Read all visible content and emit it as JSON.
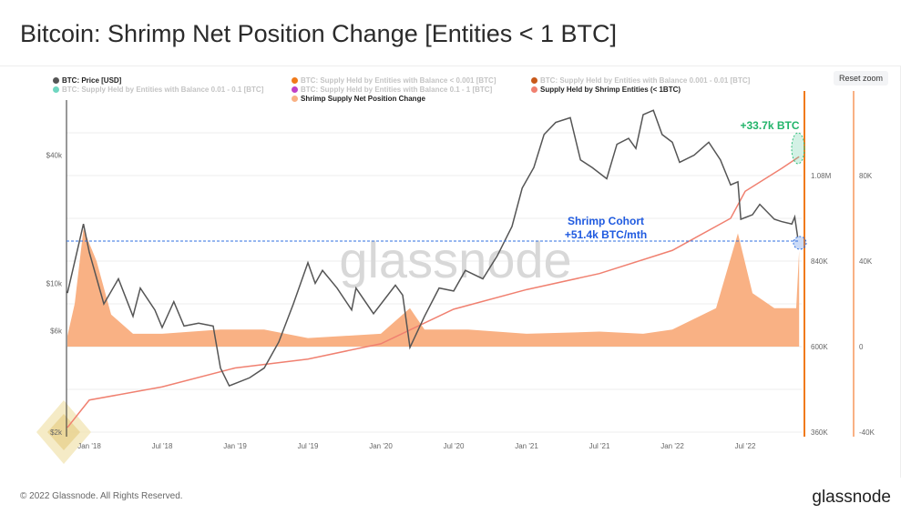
{
  "title": "Bitcoin: Shrimp Net Position Change [Entities < 1 BTC]",
  "reset_zoom": "Reset zoom",
  "footer": "© 2022 Glassnode. All Rights Reserved.",
  "logo": "glassnode",
  "watermark": "glassnode",
  "legend": [
    {
      "label": "BTC: Price [USD]",
      "color": "#555555",
      "active": true
    },
    {
      "label": "BTC: Supply Held by Entities with Balance < 0.001 [BTC]",
      "color": "#f07a1a",
      "active": false
    },
    {
      "label": "BTC: Supply Held by Entities with Balance 0.001 - 0.01 [BTC]",
      "color": "#c8591a",
      "active": false
    },
    {
      "label": "BTC: Supply Held by Entities with Balance 0.01 - 0.1 [BTC]",
      "color": "#6fd6c0",
      "active": false
    },
    {
      "label": "BTC: Supply Held by Entities with Balance 0.1 - 1 [BTC]",
      "color": "#c040c8",
      "active": false
    },
    {
      "label": "Supply Held by Shrimp Entities (< 1BTC)",
      "color": "#f08070",
      "active": true
    },
    {
      "label": "Shrimp Supply Net Position Change",
      "color": "#f9b184",
      "active": true
    }
  ],
  "annotations": {
    "green": "+33.7k BTC",
    "blue1": "Shrimp Cohort",
    "blue2": "+51.4k BTC/mth"
  },
  "chart_data": {
    "type": "line",
    "x_ticks": [
      "Jan '18",
      "Jul '18",
      "Jan '19",
      "Jul '19",
      "Jan '20",
      "Jul '20",
      "Jan '21",
      "Jul '21",
      "Jan '22",
      "Jul '22"
    ],
    "price_axis": {
      "scale": "log",
      "ticks": [
        "$2k",
        "$6k",
        "$10k",
        "$40k"
      ],
      "tick_values": [
        2000,
        6000,
        10000,
        40000
      ]
    },
    "supply_axis": {
      "ticks": [
        "360K",
        "600K",
        "840K",
        "1.08M"
      ],
      "tick_values": [
        360,
        600,
        840,
        1080
      ]
    },
    "net_axis": {
      "ticks": [
        "-40K",
        "0",
        "40K",
        "80K"
      ],
      "tick_values": [
        -40,
        0,
        40,
        80
      ]
    },
    "price": [
      [
        2017.85,
        9000
      ],
      [
        2017.96,
        19000
      ],
      [
        2018.0,
        14000
      ],
      [
        2018.1,
        8000
      ],
      [
        2018.2,
        10500
      ],
      [
        2018.3,
        7000
      ],
      [
        2018.35,
        9500
      ],
      [
        2018.45,
        7500
      ],
      [
        2018.5,
        6200
      ],
      [
        2018.58,
        8200
      ],
      [
        2018.65,
        6300
      ],
      [
        2018.75,
        6500
      ],
      [
        2018.85,
        6300
      ],
      [
        2018.9,
        4000
      ],
      [
        2018.96,
        3300
      ],
      [
        2019.1,
        3600
      ],
      [
        2019.2,
        4000
      ],
      [
        2019.3,
        5300
      ],
      [
        2019.4,
        8000
      ],
      [
        2019.5,
        12500
      ],
      [
        2019.55,
        10000
      ],
      [
        2019.6,
        11500
      ],
      [
        2019.7,
        9500
      ],
      [
        2019.8,
        7500
      ],
      [
        2019.83,
        9500
      ],
      [
        2019.95,
        7200
      ],
      [
        2020.1,
        9800
      ],
      [
        2020.15,
        8800
      ],
      [
        2020.2,
        5000
      ],
      [
        2020.3,
        7000
      ],
      [
        2020.4,
        9500
      ],
      [
        2020.5,
        9200
      ],
      [
        2020.58,
        11500
      ],
      [
        2020.7,
        10500
      ],
      [
        2020.8,
        13500
      ],
      [
        2020.9,
        18500
      ],
      [
        2020.97,
        28000
      ],
      [
        2021.05,
        35000
      ],
      [
        2021.12,
        50000
      ],
      [
        2021.2,
        57000
      ],
      [
        2021.3,
        60000
      ],
      [
        2021.37,
        38000
      ],
      [
        2021.45,
        35000
      ],
      [
        2021.55,
        31000
      ],
      [
        2021.62,
        45000
      ],
      [
        2021.7,
        48000
      ],
      [
        2021.75,
        43000
      ],
      [
        2021.8,
        62000
      ],
      [
        2021.87,
        65000
      ],
      [
        2021.93,
        50000
      ],
      [
        2022.0,
        46000
      ],
      [
        2022.05,
        37000
      ],
      [
        2022.15,
        40000
      ],
      [
        2022.25,
        46000
      ],
      [
        2022.33,
        38000
      ],
      [
        2022.4,
        29000
      ],
      [
        2022.45,
        30000
      ],
      [
        2022.47,
        20000
      ],
      [
        2022.55,
        21000
      ],
      [
        2022.6,
        23500
      ],
      [
        2022.7,
        20000
      ],
      [
        2022.75,
        19500
      ],
      [
        2022.82,
        19000
      ],
      [
        2022.84,
        20500
      ],
      [
        2022.86,
        16500
      ]
    ],
    "shrimp_supply_k": [
      [
        2017.85,
        373
      ],
      [
        2018.0,
        450
      ],
      [
        2018.5,
        487
      ],
      [
        2019.0,
        540
      ],
      [
        2019.5,
        565
      ],
      [
        2020.0,
        608
      ],
      [
        2020.5,
        705
      ],
      [
        2021.0,
        760
      ],
      [
        2021.5,
        805
      ],
      [
        2022.0,
        870
      ],
      [
        2022.4,
        960
      ],
      [
        2022.5,
        1036
      ],
      [
        2022.75,
        1100
      ],
      [
        2022.87,
        1133
      ]
    ],
    "net_position_k": [
      [
        2017.85,
        5
      ],
      [
        2017.9,
        20
      ],
      [
        2017.96,
        55
      ],
      [
        2018.05,
        40
      ],
      [
        2018.15,
        15
      ],
      [
        2018.3,
        6
      ],
      [
        2018.5,
        6
      ],
      [
        2018.9,
        8
      ],
      [
        2019.2,
        8
      ],
      [
        2019.5,
        4
      ],
      [
        2020.0,
        6
      ],
      [
        2020.2,
        18
      ],
      [
        2020.3,
        8
      ],
      [
        2020.6,
        8
      ],
      [
        2021.0,
        6
      ],
      [
        2021.5,
        7
      ],
      [
        2021.8,
        6
      ],
      [
        2022.0,
        8
      ],
      [
        2022.3,
        18
      ],
      [
        2022.45,
        53
      ],
      [
        2022.55,
        25
      ],
      [
        2022.7,
        18
      ],
      [
        2022.85,
        18
      ],
      [
        2022.87,
        45
      ]
    ]
  }
}
